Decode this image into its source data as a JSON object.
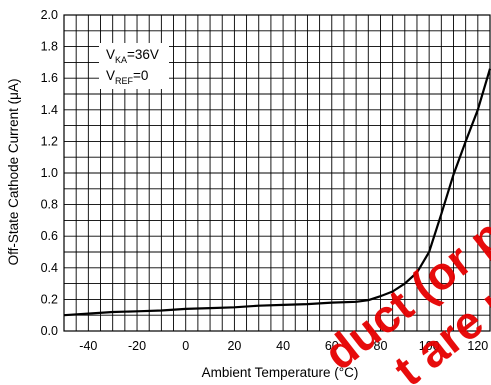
{
  "chart_data": {
    "type": "line",
    "title": "",
    "xlabel": "Ambient Temperature (°C)",
    "ylabel": "Off-State Cathode Current (μA)",
    "xlim": [
      -50,
      125
    ],
    "ylim": [
      0,
      2.0
    ],
    "x_ticks": [
      -40,
      -20,
      0,
      20,
      40,
      60,
      80,
      100,
      120
    ],
    "y_ticks": [
      0.0,
      0.2,
      0.4,
      0.6,
      0.8,
      1.0,
      1.2,
      1.4,
      1.6,
      1.8,
      2.0
    ],
    "x_tick_labels": [
      "-40",
      "-20",
      "0",
      "20",
      "40",
      "60",
      "80",
      "100",
      "120"
    ],
    "y_tick_labels": [
      "0.0",
      "0.2",
      "0.4",
      "0.6",
      "0.8",
      "1.0",
      "1.2",
      "1.4",
      "1.6",
      "1.8",
      "2.0"
    ],
    "grid": true,
    "x_minor_step": 5,
    "legend": "none",
    "series": [
      {
        "color": "#000000",
        "x": [
          -50,
          -40,
          -30,
          -20,
          -10,
          0,
          10,
          20,
          30,
          40,
          50,
          60,
          70,
          75,
          80,
          85,
          90,
          95,
          100,
          105,
          110,
          115,
          120,
          125
        ],
        "y": [
          0.1,
          0.11,
          0.12,
          0.125,
          0.13,
          0.14,
          0.145,
          0.15,
          0.16,
          0.165,
          0.17,
          0.18,
          0.185,
          0.195,
          0.22,
          0.25,
          0.3,
          0.37,
          0.5,
          0.74,
          0.99,
          1.2,
          1.4,
          1.66
        ]
      }
    ],
    "annotations": {
      "line1_main": "V",
      "line1_sub": "KA",
      "line1_value": "=36V",
      "line2_main": "V",
      "line2_sub": "REF",
      "line2_value": "=0"
    }
  },
  "watermark": {
    "line1": "duct (or pro",
    "line2": "t are n"
  }
}
